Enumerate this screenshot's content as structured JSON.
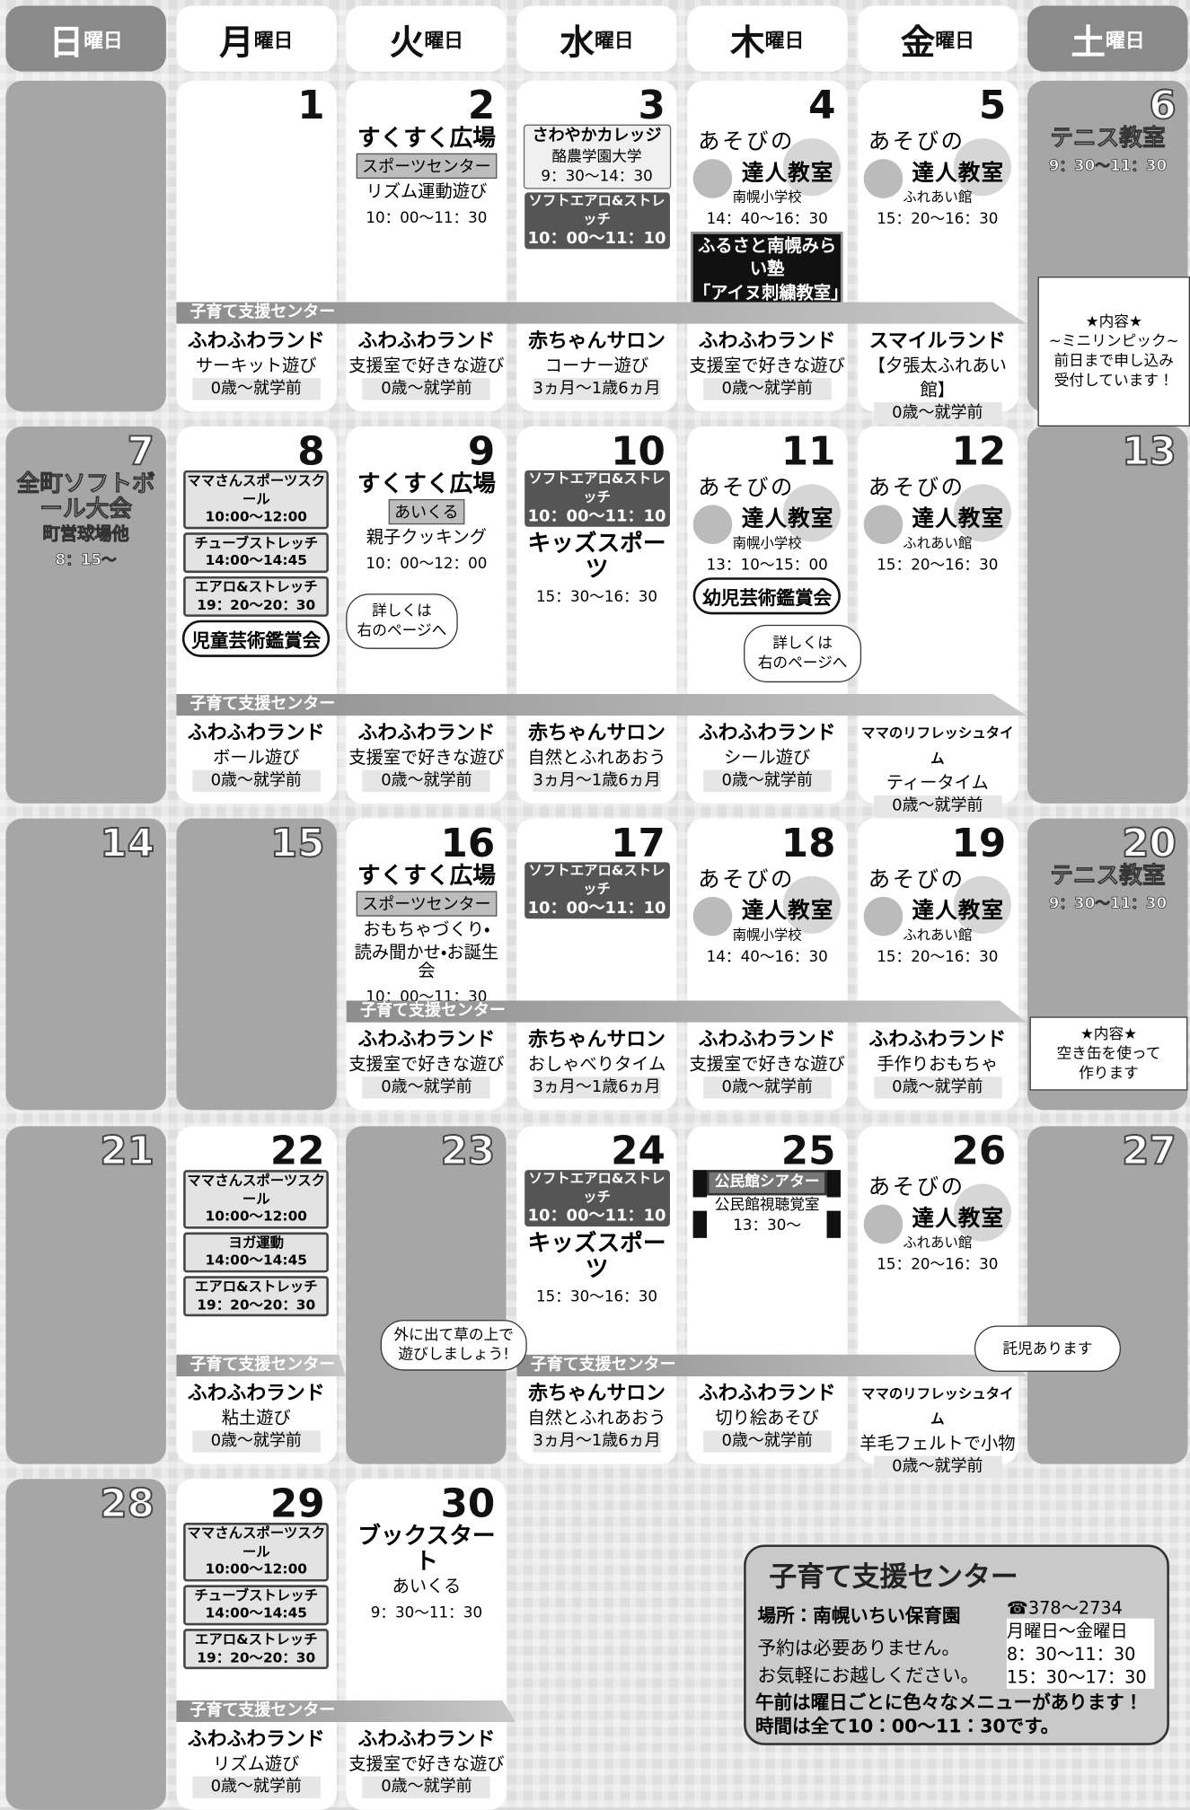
{
  "weekdays": [
    {
      "day": "日",
      "suffix": "曜日"
    },
    {
      "day": "月",
      "suffix": "曜日"
    },
    {
      "day": "火",
      "suffix": "曜日"
    },
    {
      "day": "水",
      "suffix": "曜日"
    },
    {
      "day": "木",
      "suffix": "曜日"
    },
    {
      "day": "金",
      "suffix": "曜日"
    },
    {
      "day": "土",
      "suffix": "曜日"
    }
  ],
  "weeks": [
    {
      "banner": "子育て支援センター",
      "days": [
        {},
        {
          "date": "1",
          "top": [],
          "bottom": [
            "ふわふわランド",
            "サーキット遊び",
            "0歳～就学前"
          ]
        },
        {
          "date": "2",
          "top": [
            {
              "big": "すくすく広場"
            },
            {
              "tag": "スポーツセンター"
            },
            {
              "text": "リズム運動遊び"
            },
            {
              "time": "10：00～11：30"
            }
          ],
          "bottom": [
            "ふわふわランド",
            "支援室で好きな遊び",
            "0歳～就学前"
          ]
        },
        {
          "date": "3",
          "top": [
            {
              "frame": [
                "さわやかカレッジ",
                "酪農学園大学",
                "9：30～14：30"
              ]
            },
            {
              "dark": [
                "ソフトエアロ&ストレッチ",
                "10：00～11：10"
              ]
            }
          ],
          "bottom": [
            "赤ちゃんサロン",
            "コーナー遊び",
            "3ヵ月～1歳6ヵ月"
          ]
        },
        {
          "date": "4",
          "top": [
            {
              "asobi": [
                "あそびの",
                "達人教室",
                "南幌小学校",
                "14：40～16：30"
              ]
            },
            {
              "black": [
                "ふるさと南幌みらい塾",
                "「アイヌ刺繍教室」"
              ]
            }
          ],
          "bottom": [
            "ふわふわランド",
            "支援室で好きな遊び",
            "0歳～就学前"
          ]
        },
        {
          "date": "5",
          "top": [
            {
              "asobi": [
                "あそびの",
                "達人教室",
                "ふれあい館",
                "15：20～16：30"
              ]
            }
          ],
          "bottom": [
            "スマイルランド",
            "【夕張太ふれあい館】",
            "0歳～就学前"
          ]
        },
        {
          "date": "6",
          "top": [
            {
              "big": "テニス教室"
            },
            {
              "time": "9：30～11：30"
            }
          ]
        }
      ]
    },
    {
      "banner": "子育て支援センター",
      "days": [
        {
          "date": "7",
          "top": [
            {
              "big": "全町ソフトボール大会"
            },
            {
              "text": "町営球場他"
            },
            {
              "time": "8：15～"
            }
          ]
        },
        {
          "date": "8",
          "top": [
            {
              "panel": [
                "ママさんスポーツスクール",
                "10:00～12:00"
              ]
            },
            {
              "panel": [
                "チューブストレッチ",
                "14:00～14:45"
              ]
            },
            {
              "panel": [
                "エアロ&ストレッチ",
                "19：20～20：30"
              ]
            },
            {
              "oval": "児童芸術鑑賞会"
            }
          ],
          "bottom": [
            "ふわふわランド",
            "ボール遊び",
            "0歳～就学前"
          ]
        },
        {
          "date": "9",
          "top": [
            {
              "big": "すくすく広場"
            },
            {
              "tag": "あいくる"
            },
            {
              "text": "親子クッキング"
            },
            {
              "time": "10：00～12：00"
            }
          ],
          "bottom": [
            "ふわふわランド",
            "支援室で好きな遊び",
            "0歳～就学前"
          ]
        },
        {
          "date": "10",
          "top": [
            {
              "dark": [
                "ソフトエアロ&ストレッチ",
                "10：00～11：10"
              ]
            },
            {
              "big": "キッズスポーツ"
            },
            {
              "time": "15：30～16：30"
            }
          ],
          "bottom": [
            "赤ちゃんサロン",
            "自然とふれあおう",
            "3ヵ月～1歳6ヵ月"
          ]
        },
        {
          "date": "11",
          "top": [
            {
              "asobi": [
                "あそびの",
                "達人教室",
                "南幌小学校",
                "13：10～15：00"
              ]
            },
            {
              "oval": "幼児芸術鑑賞会"
            }
          ],
          "bottom": [
            "ふわふわランド",
            "シール遊び",
            "0歳～就学前"
          ]
        },
        {
          "date": "12",
          "top": [
            {
              "asobi": [
                "あそびの",
                "達人教室",
                "ふれあい館",
                "15：20～16：30"
              ]
            }
          ],
          "bottom": [
            "ママのリフレッシュタイム",
            "ティータイム",
            "0歳～就学前"
          ]
        },
        {
          "date": "13",
          "top": []
        }
      ]
    },
    {
      "banner": "子育て支援センター",
      "days": [
        {
          "date": "14",
          "top": []
        },
        {
          "date": "15",
          "top": []
        },
        {
          "date": "16",
          "top": [
            {
              "big": "すくすく広場"
            },
            {
              "tag": "スポーツセンター"
            },
            {
              "text": "おもちゃづくり・"
            },
            {
              "text": "読み聞かせ・お誕生会"
            },
            {
              "time": "10：00～11：30"
            }
          ],
          "bottom": [
            "ふわふわランド",
            "支援室で好きな遊び",
            "0歳～就学前"
          ]
        },
        {
          "date": "17",
          "top": [
            {
              "dark": [
                "ソフトエアロ&ストレッチ",
                "10：00～11：10"
              ]
            }
          ],
          "bottom": [
            "赤ちゃんサロン",
            "おしゃべりタイム",
            "3ヵ月～1歳6ヵ月"
          ]
        },
        {
          "date": "18",
          "top": [
            {
              "asobi": [
                "あそびの",
                "達人教室",
                "南幌小学校",
                "14：40～16：30"
              ]
            }
          ],
          "bottom": [
            "ふわふわランド",
            "支援室で好きな遊び",
            "0歳～就学前"
          ]
        },
        {
          "date": "19",
          "top": [
            {
              "asobi": [
                "あそびの",
                "達人教室",
                "ふれあい館",
                "15：20～16：30"
              ]
            }
          ],
          "bottom": [
            "ふわふわランド",
            "手作りおもちゃ",
            "0歳～就学前"
          ]
        },
        {
          "date": "20",
          "top": [
            {
              "big": "テニス教室"
            },
            {
              "time": "9：30～11：30"
            }
          ]
        }
      ]
    },
    {
      "banner": "子育て支援センター",
      "days": [
        {
          "date": "21",
          "top": []
        },
        {
          "date": "22",
          "top": [
            {
              "panel": [
                "ママさんスポーツスクール",
                "10:00～12:00"
              ]
            },
            {
              "panel": [
                "ヨガ運動",
                "14:00～14:45"
              ]
            },
            {
              "panel": [
                "エアロ&ストレッチ",
                "19：20～20：30"
              ]
            }
          ],
          "bottom": [
            "ふわふわランド",
            "粘土遊び",
            "0歳～就学前"
          ]
        },
        {
          "date": "23",
          "top": []
        },
        {
          "date": "24",
          "top": [
            {
              "dark": [
                "ソフトエアロ&ストレッチ",
                "10：00～11：10"
              ]
            },
            {
              "big": "キッズスポーツ"
            },
            {
              "time": "15：30～16：30"
            }
          ],
          "bottom": [
            "赤ちゃんサロン",
            "自然とふれあおう",
            "3ヵ月～1歳6ヵ月"
          ]
        },
        {
          "date": "25",
          "top": [
            {
              "film": [
                "公民館シアター",
                "公民館視聴覚室",
                "13：30～"
              ]
            }
          ],
          "bottom": [
            "ふわふわランド",
            "切り絵あそび",
            "0歳～就学前"
          ]
        },
        {
          "date": "26",
          "top": [
            {
              "asobi": [
                "あそびの",
                "達人教室",
                "ふれあい館",
                "15：20～16：30"
              ]
            }
          ],
          "bottom": [
            "ママのリフレッシュタイム",
            "羊毛フェルトで小物",
            "0歳～就学前"
          ]
        },
        {
          "date": "27",
          "top": []
        }
      ]
    },
    {
      "banner": "子育て支援センター",
      "days": [
        {
          "date": "28",
          "top": []
        },
        {
          "date": "29",
          "top": [
            {
              "panel": [
                "ママさんスポーツスクール",
                "10:00～12:00"
              ]
            },
            {
              "panel": [
                "チューブストレッチ",
                "14:00～14:45"
              ]
            },
            {
              "panel": [
                "エアロ&ストレッチ",
                "19：20～20：30"
              ]
            }
          ],
          "bottom": [
            "ふわふわランド",
            "リズム遊び",
            "0歳～就学前"
          ]
        },
        {
          "date": "30",
          "top": [
            {
              "big": "ブックスタート"
            },
            {
              "text": "あいくる"
            },
            {
              "time": "9：30～11：30"
            }
          ],
          "bottom": [
            "ふわふわランド",
            "支援室で好きな遊び",
            "0歳～就学前"
          ]
        }
      ]
    }
  ],
  "notes": [
    [
      "★内容★",
      "~ミニリンピック~",
      "前日まで申し込み",
      "受付しています！"
    ],
    [
      "詳しくは",
      "右のページへ"
    ],
    [
      "詳しくは",
      "右のページへ"
    ],
    [
      "★内容★",
      "空き缶を使って",
      "作ります"
    ],
    [
      "外に出て草の上で",
      "遊びしましょう!"
    ],
    [
      "託児あります"
    ]
  ],
  "info": {
    "title": "子育て支援センター",
    "place": "場所：南幌いちい保育園",
    "phone": "☎378～2734",
    "days": "月曜日～金曜日",
    "hours": [
      "8：30～11：30",
      "15：30～17：30"
    ],
    "lines": [
      "予約は必要ありません。",
      "お気軽にお越しください。"
    ],
    "footer": "午前は曜日ごとに色々なメニューがあります！時間は全て10：00～11：30です。"
  }
}
